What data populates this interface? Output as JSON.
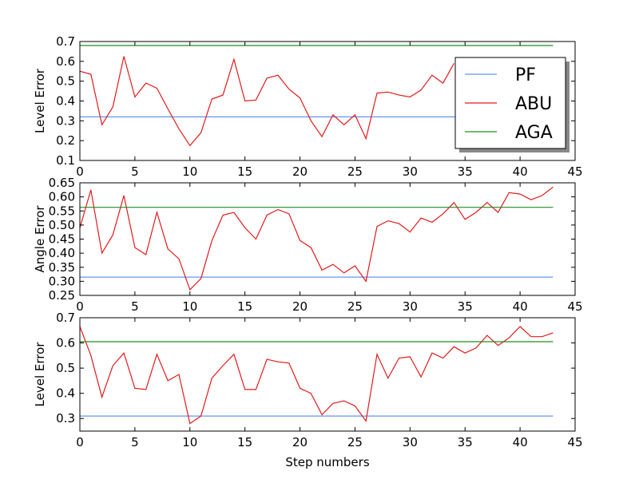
{
  "chart_data": [
    {
      "type": "line",
      "xlabel": "",
      "ylabel": "Level Error",
      "xlim": [
        0,
        45
      ],
      "ylim": [
        0.1,
        0.7
      ],
      "xticks": [
        "0",
        "5",
        "10",
        "15",
        "20",
        "25",
        "30",
        "35",
        "40",
        "45"
      ],
      "yticks": [
        "0.1",
        "0.2",
        "0.3",
        "0.4",
        "0.5",
        "0.6",
        "0.7"
      ],
      "legend": {
        "position": "upper right",
        "entries": [
          "PF",
          "ABU",
          "AGA"
        ]
      },
      "series": [
        {
          "name": "PF",
          "color": "#6495ed",
          "x": [
            0,
            43
          ],
          "values": [
            0.32,
            0.32
          ]
        },
        {
          "name": "ABU",
          "color": "#e31a1c",
          "x": [
            0,
            1,
            2,
            3,
            4,
            5,
            6,
            7,
            8,
            9,
            10,
            11,
            12,
            13,
            14,
            15,
            16,
            17,
            18,
            19,
            20,
            21,
            22,
            23,
            24,
            25,
            26,
            27,
            28,
            29,
            30,
            31,
            32,
            33,
            34
          ],
          "values": [
            0.55,
            0.535,
            0.28,
            0.37,
            0.625,
            0.42,
            0.49,
            0.465,
            0.36,
            0.26,
            0.175,
            0.24,
            0.41,
            0.43,
            0.61,
            0.4,
            0.405,
            0.515,
            0.53,
            0.46,
            0.415,
            0.3,
            0.22,
            0.33,
            0.28,
            0.33,
            0.21,
            0.44,
            0.445,
            0.43,
            0.42,
            0.455,
            0.53,
            0.49,
            0.59
          ]
        },
        {
          "name": "AGA",
          "color": "#228b22",
          "x": [
            0,
            43
          ],
          "values": [
            0.68,
            0.68
          ]
        }
      ]
    },
    {
      "type": "line",
      "xlabel": "",
      "ylabel": "Angle Error",
      "xlim": [
        0,
        45
      ],
      "ylim": [
        0.25,
        0.65
      ],
      "xticks": [
        "0",
        "5",
        "10",
        "15",
        "20",
        "25",
        "30",
        "35",
        "40",
        "45"
      ],
      "yticks": [
        "0.25",
        "0.30",
        "0.35",
        "0.40",
        "0.45",
        "0.50",
        "0.55",
        "0.60",
        "0.65"
      ],
      "series": [
        {
          "name": "PF",
          "color": "#6495ed",
          "x": [
            0,
            43
          ],
          "values": [
            0.315,
            0.315
          ]
        },
        {
          "name": "ABU",
          "color": "#e31a1c",
          "x": [
            0,
            1,
            2,
            3,
            4,
            5,
            6,
            7,
            8,
            9,
            10,
            11,
            12,
            13,
            14,
            15,
            16,
            17,
            18,
            19,
            20,
            21,
            22,
            23,
            24,
            25,
            26,
            27,
            28,
            29,
            30,
            31,
            32,
            33,
            34,
            35,
            36,
            37,
            38,
            39,
            40,
            41,
            42,
            43
          ],
          "values": [
            0.49,
            0.625,
            0.4,
            0.465,
            0.605,
            0.42,
            0.395,
            0.545,
            0.415,
            0.38,
            0.27,
            0.31,
            0.445,
            0.535,
            0.545,
            0.49,
            0.45,
            0.535,
            0.555,
            0.54,
            0.445,
            0.42,
            0.34,
            0.36,
            0.33,
            0.355,
            0.3,
            0.495,
            0.515,
            0.505,
            0.475,
            0.525,
            0.51,
            0.54,
            0.58,
            0.52,
            0.545,
            0.58,
            0.545,
            0.615,
            0.61,
            0.59,
            0.605,
            0.635
          ]
        },
        {
          "name": "AGA",
          "color": "#228b22",
          "x": [
            0,
            43
          ],
          "values": [
            0.563,
            0.563
          ]
        }
      ]
    },
    {
      "type": "line",
      "xlabel": "Step numbers",
      "ylabel": "Level Error",
      "xlim": [
        0,
        45
      ],
      "ylim": [
        0.25,
        0.7
      ],
      "xticks": [
        "0",
        "5",
        "10",
        "15",
        "20",
        "25",
        "30",
        "35",
        "40",
        "45"
      ],
      "yticks": [
        "0.3",
        "0.4",
        "0.5",
        "0.6",
        "0.7"
      ],
      "series": [
        {
          "name": "PF",
          "color": "#6495ed",
          "x": [
            0,
            43
          ],
          "values": [
            0.31,
            0.31
          ]
        },
        {
          "name": "ABU",
          "color": "#e31a1c",
          "x": [
            0,
            1,
            2,
            3,
            4,
            5,
            6,
            7,
            8,
            9,
            10,
            11,
            12,
            13,
            14,
            15,
            16,
            17,
            18,
            19,
            20,
            21,
            22,
            23,
            24,
            25,
            26,
            27,
            28,
            29,
            30,
            31,
            32,
            33,
            34,
            35,
            36,
            37,
            38,
            39,
            40,
            41,
            42,
            43
          ],
          "values": [
            0.665,
            0.55,
            0.385,
            0.51,
            0.56,
            0.42,
            0.415,
            0.555,
            0.45,
            0.475,
            0.28,
            0.31,
            0.46,
            0.51,
            0.555,
            0.415,
            0.415,
            0.535,
            0.525,
            0.52,
            0.42,
            0.4,
            0.315,
            0.36,
            0.37,
            0.35,
            0.29,
            0.555,
            0.46,
            0.54,
            0.545,
            0.465,
            0.56,
            0.54,
            0.585,
            0.56,
            0.58,
            0.63,
            0.59,
            0.62,
            0.665,
            0.625,
            0.625,
            0.64
          ]
        },
        {
          "name": "AGA",
          "color": "#228b22",
          "x": [
            0,
            43
          ],
          "values": [
            0.605,
            0.605
          ]
        }
      ]
    }
  ]
}
